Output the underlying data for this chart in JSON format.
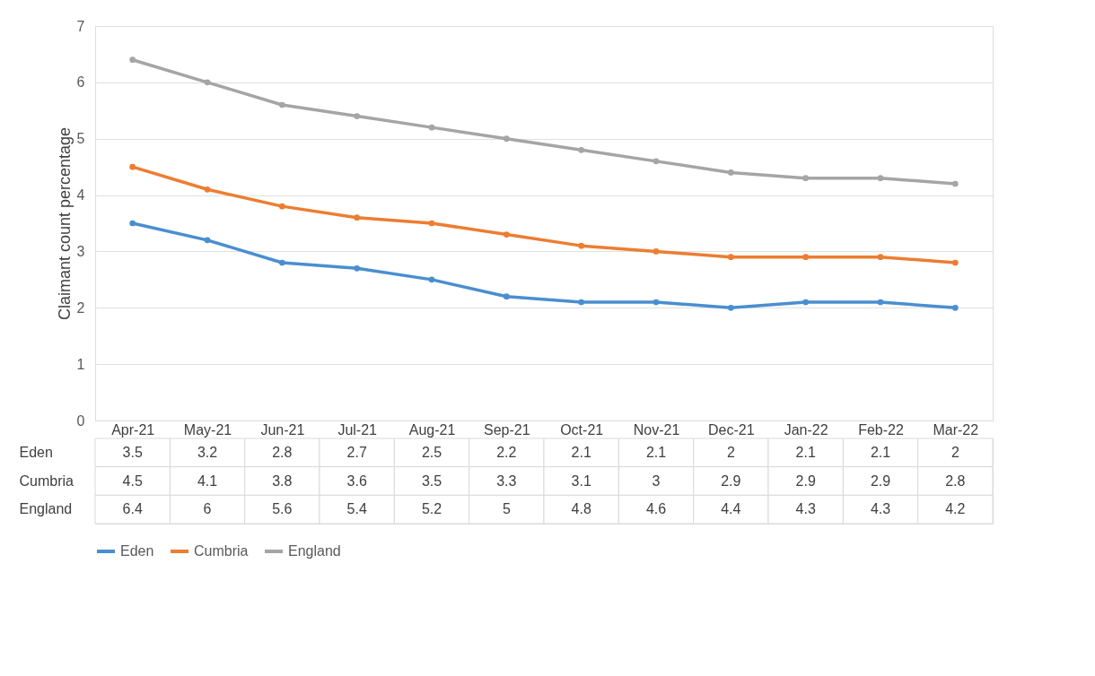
{
  "chart_data": {
    "type": "line",
    "ylabel": "Claimant count percentage",
    "categories": [
      "Apr-21",
      "May-21",
      "Jun-21",
      "Jul-21",
      "Aug-21",
      "Sep-21",
      "Oct-21",
      "Nov-21",
      "Dec-21",
      "Jan-22",
      "Feb-22",
      "Mar-22"
    ],
    "series": [
      {
        "name": "Eden",
        "color": "#4a8ed0",
        "values": [
          3.5,
          3.2,
          2.8,
          2.7,
          2.5,
          2.2,
          2.1,
          2.1,
          2,
          2.1,
          2.1,
          2
        ]
      },
      {
        "name": "Cumbria",
        "color": "#ed7d31",
        "values": [
          4.5,
          4.1,
          3.8,
          3.6,
          3.5,
          3.3,
          3.1,
          3,
          2.9,
          2.9,
          2.9,
          2.8
        ]
      },
      {
        "name": "England",
        "color": "#a5a5a5",
        "values": [
          6.4,
          6,
          5.6,
          5.4,
          5.2,
          5,
          4.8,
          4.6,
          4.4,
          4.3,
          4.3,
          4.2
        ]
      }
    ],
    "ylim": [
      0,
      7
    ],
    "yticks": [
      0,
      1,
      2,
      3,
      4,
      5,
      6,
      7
    ],
    "grid": "y",
    "legend": "bottom",
    "marker": "circle",
    "line_style": "solid",
    "data_labels": true
  }
}
